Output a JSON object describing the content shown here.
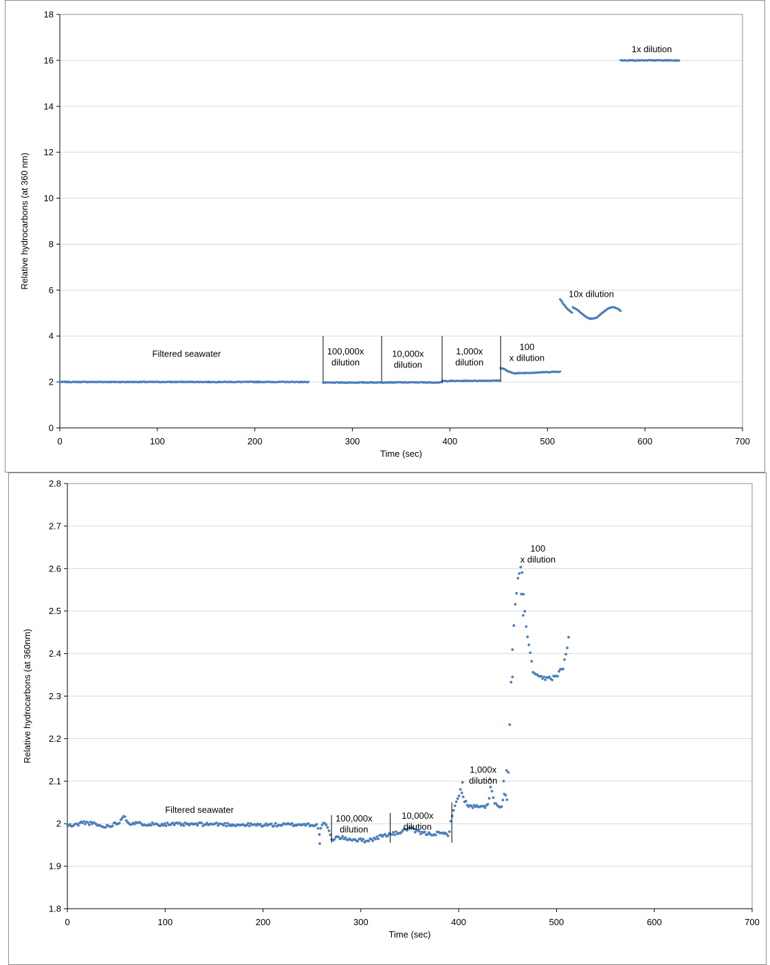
{
  "chart_data": [
    {
      "type": "scatter",
      "title": "",
      "xlabel": "Time (sec)",
      "ylabel": "Relative hydrocarbons (at 360 nm)",
      "xlim": [
        0,
        700
      ],
      "ylim": [
        0,
        18
      ],
      "xticks": [
        "0",
        "100",
        "200",
        "300",
        "400",
        "500",
        "600",
        "700"
      ],
      "yticks": [
        "0",
        "2",
        "4",
        "6",
        "8",
        "10",
        "12",
        "14",
        "16",
        "18"
      ],
      "grid": "horizontal",
      "marker_color": "#4a7ebb",
      "segments": [
        {
          "x": [
            0,
            255
          ],
          "y": [
            2.0,
            2.0
          ]
        },
        {
          "x": [
            270,
            330
          ],
          "y": [
            1.97,
            1.98
          ]
        },
        {
          "x": [
            330,
            392
          ],
          "y": [
            1.98,
            1.98
          ]
        },
        {
          "x": [
            392,
            451
          ],
          "y": [
            2.04,
            2.06
          ]
        },
        {
          "x": [
            452,
            513
          ],
          "y": [
            2.35,
            2.45
          ]
        },
        {
          "x": [
            513,
            575
          ],
          "y": [
            5.3,
            5.1
          ]
        },
        {
          "x": [
            575,
            635
          ],
          "y": [
            16.0,
            16.0
          ]
        }
      ],
      "dividers_x": [
        270,
        330,
        392,
        452
      ],
      "annotations": [
        {
          "lines": [
            "Filtered seawater"
          ],
          "x": 130,
          "y": 3.1
        },
        {
          "lines": [
            "100,000x",
            "dilution"
          ],
          "x": 293,
          "y": 3.2
        },
        {
          "lines": [
            "10,000x",
            "dilution"
          ],
          "x": 357,
          "y": 3.1
        },
        {
          "lines": [
            "1,000x",
            "dilution"
          ],
          "x": 420,
          "y": 3.2
        },
        {
          "lines": [
            "100",
            "x dilution"
          ],
          "x": 479,
          "y": 3.4
        },
        {
          "lines": [
            "10x dilution"
          ],
          "x": 545,
          "y": 5.7
        },
        {
          "lines": [
            "1x dilution"
          ],
          "x": 607,
          "y": 16.35
        }
      ]
    },
    {
      "type": "scatter",
      "title": "",
      "xlabel": "Time (sec)",
      "ylabel": "Relative hydrocarbons (at 360nm)",
      "xlim": [
        0,
        700
      ],
      "ylim": [
        1.8,
        2.8
      ],
      "xticks": [
        "0",
        "100",
        "200",
        "300",
        "400",
        "500",
        "600",
        "700"
      ],
      "yticks": [
        "1.8",
        "1.9",
        "2",
        "2.1",
        "2.2",
        "2.3",
        "2.4",
        "2.5",
        "2.6",
        "2.7",
        "2.8"
      ],
      "grid": "horizontal",
      "marker_color": "#4a7ebb",
      "keypoints": [
        [
          0,
          1.997
        ],
        [
          5,
          1.995
        ],
        [
          10,
          1.998
        ],
        [
          15,
          2.003
        ],
        [
          20,
          2.002
        ],
        [
          30,
          1.998
        ],
        [
          36,
          1.992
        ],
        [
          42,
          1.995
        ],
        [
          50,
          2.0
        ],
        [
          55,
          2.008
        ],
        [
          58,
          2.022
        ],
        [
          62,
          2.002
        ],
        [
          70,
          2.0
        ],
        [
          90,
          1.999
        ],
        [
          120,
          1.998
        ],
        [
          150,
          1.999
        ],
        [
          180,
          1.997
        ],
        [
          210,
          1.997
        ],
        [
          240,
          1.998
        ],
        [
          250,
          1.998
        ],
        [
          255,
          1.996
        ],
        [
          258,
          1.975
        ],
        [
          260,
          1.998
        ],
        [
          265,
          1.998
        ],
        [
          270,
          1.962
        ],
        [
          275,
          1.968
        ],
        [
          285,
          1.965
        ],
        [
          295,
          1.962
        ],
        [
          305,
          1.96
        ],
        [
          315,
          1.965
        ],
        [
          322,
          1.972
        ],
        [
          330,
          1.975
        ],
        [
          338,
          1.978
        ],
        [
          345,
          1.985
        ],
        [
          350,
          1.99
        ],
        [
          355,
          1.983
        ],
        [
          362,
          1.978
        ],
        [
          370,
          1.976
        ],
        [
          380,
          1.977
        ],
        [
          390,
          1.975
        ],
        [
          394,
          2.03
        ],
        [
          398,
          2.05
        ],
        [
          402,
          2.08
        ],
        [
          406,
          2.055
        ],
        [
          410,
          2.04
        ],
        [
          418,
          2.04
        ],
        [
          425,
          2.038
        ],
        [
          430,
          2.045
        ],
        [
          433,
          2.09
        ],
        [
          436,
          2.05
        ],
        [
          440,
          2.04
        ],
        [
          444,
          2.04
        ],
        [
          447,
          2.07
        ],
        [
          450,
          2.055
        ],
        [
          454,
          2.37
        ],
        [
          456,
          2.45
        ],
        [
          458,
          2.52
        ],
        [
          461,
          2.58
        ],
        [
          464,
          2.61
        ],
        [
          467,
          2.52
        ],
        [
          470,
          2.44
        ],
        [
          473,
          2.4
        ],
        [
          476,
          2.36
        ],
        [
          480,
          2.345
        ],
        [
          486,
          2.34
        ],
        [
          492,
          2.342
        ],
        [
          498,
          2.345
        ],
        [
          503,
          2.355
        ],
        [
          507,
          2.37
        ],
        [
          510,
          2.4
        ],
        [
          513,
          2.45
        ]
      ],
      "scatter_extra": [
        [
          258,
          1.953
        ],
        [
          449,
          2.125
        ],
        [
          455,
          2.345
        ],
        [
          464,
          2.54
        ],
        [
          466,
          2.49
        ],
        [
          404,
          2.097
        ],
        [
          432,
          2.105
        ],
        [
          446,
          2.1
        ]
      ],
      "dividers": [
        {
          "x": 270,
          "y": [
            1.955,
            2.02
          ]
        },
        {
          "x": 330,
          "y": [
            1.955,
            2.025
          ]
        },
        {
          "x": 393,
          "y": [
            1.955,
            2.05
          ]
        }
      ],
      "annotations": [
        {
          "lines": [
            "Filtered seawater"
          ],
          "x": 135,
          "y": 2.025
        },
        {
          "lines": [
            "100,000x",
            "dilution"
          ],
          "x": 293,
          "y": 2.005
        },
        {
          "lines": [
            "10,000x",
            "dilution"
          ],
          "x": 358,
          "y": 2.012
        },
        {
          "lines": [
            "1,000x",
            "dilution"
          ],
          "x": 425,
          "y": 2.12
        },
        {
          "lines": [
            "100",
            "x dilution"
          ],
          "x": 481,
          "y": 2.64
        }
      ]
    }
  ]
}
